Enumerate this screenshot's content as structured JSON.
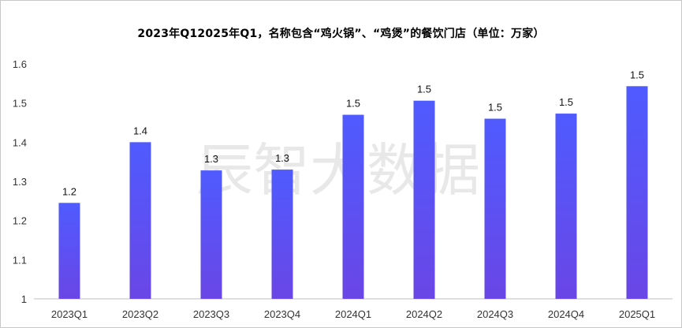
{
  "chart_data": {
    "type": "bar",
    "title": "2023年Q12025年Q1，名称包含“鸡火锅”、“鸡煲”的餐饮门店（单位：万家）",
    "categories": [
      "2023Q1",
      "2023Q2",
      "2023Q3",
      "2023Q4",
      "2024Q1",
      "2024Q2",
      "2024Q3",
      "2024Q4",
      "2025Q1"
    ],
    "values": [
      1.245,
      1.4,
      1.328,
      1.33,
      1.47,
      1.506,
      1.46,
      1.473,
      1.543
    ],
    "data_labels": [
      "1.2",
      "1.4",
      "1.3",
      "1.3",
      "1.5",
      "1.5",
      "1.5",
      "1.5",
      "1.5"
    ],
    "y_ticks": [
      "1",
      "1.1",
      "1.2",
      "1.3",
      "1.4",
      "1.5",
      "1.6"
    ],
    "ylim": [
      1,
      1.6
    ],
    "xlabel": "",
    "ylabel": "",
    "grid": false,
    "legend": "none",
    "bar_color_top": "#4f5bff",
    "bar_color_bottom": "#6a46e6",
    "watermark": "辰智大数据"
  }
}
